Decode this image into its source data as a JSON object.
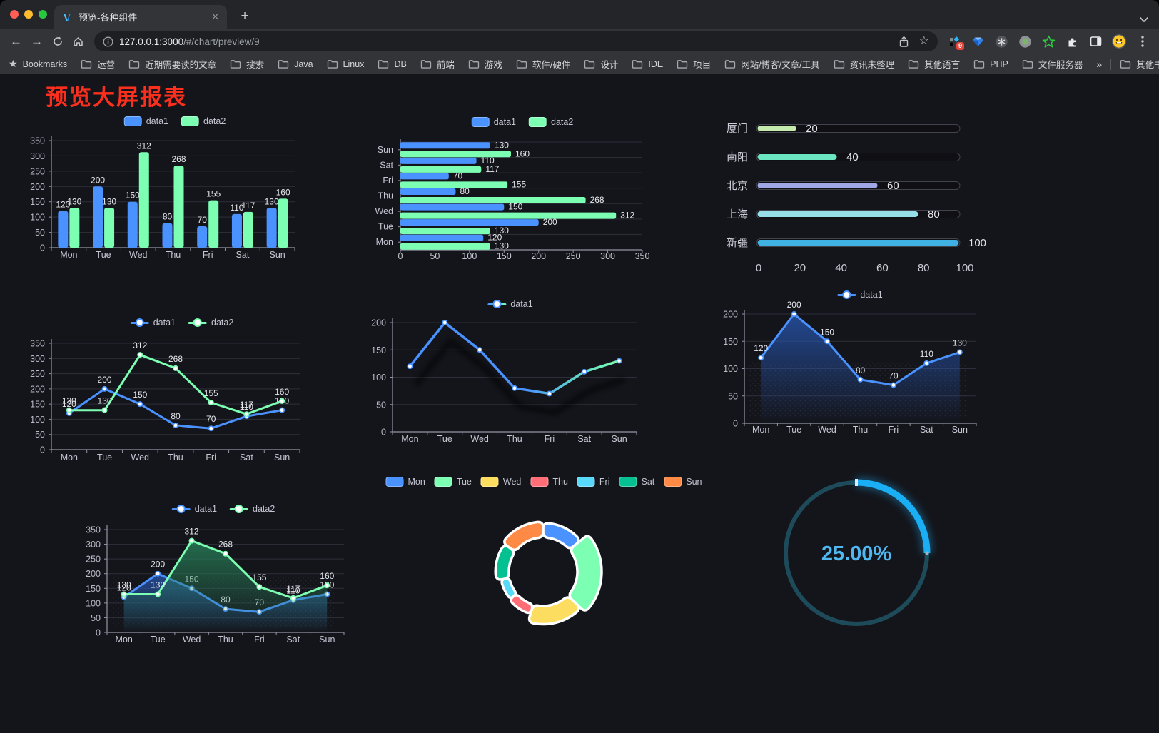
{
  "browser": {
    "traffic_lights": [
      "#ff5f57",
      "#febc2e",
      "#28c840"
    ],
    "tab": {
      "title": "预览-各种组件",
      "close": "×",
      "new_tab": "+"
    },
    "nav": {
      "url_host": "127.0.0.1:3000",
      "url_path": "/#/chart/preview/9"
    },
    "extensions_badge": "9",
    "bookmarks_bar": {
      "label": "Bookmarks",
      "folders": [
        "运营",
        "近期需要读的文章",
        "搜索",
        "Java",
        "Linux",
        "DB",
        "前端",
        "游戏",
        "软件/硬件",
        "设计",
        "IDE",
        "项目",
        "网站/博客/文章/工具",
        "资讯未整理",
        "其他语言",
        "PHP",
        "文件服务器"
      ],
      "overflow": "»",
      "other": "其他书签"
    }
  },
  "page": {
    "heading": "预览大屏报表",
    "heading_color": "#fb2f1d",
    "background": "#14151b"
  },
  "chart_data": [
    {
      "id": "bar-vertical",
      "type": "bar",
      "categories": [
        "Mon",
        "Tue",
        "Wed",
        "Thu",
        "Fri",
        "Sat",
        "Sun"
      ],
      "series": [
        {
          "name": "data1",
          "color": "#4992ff",
          "values": [
            120,
            200,
            150,
            80,
            70,
            110,
            130
          ]
        },
        {
          "name": "data2",
          "color": "#7cffb2",
          "values": [
            130,
            130,
            312,
            268,
            155,
            117,
            160
          ]
        }
      ],
      "y_max": 350,
      "y_step": 50
    },
    {
      "id": "bar-horizontal",
      "type": "hbar",
      "categories": [
        "Mon",
        "Tue",
        "Wed",
        "Thu",
        "Fri",
        "Sat",
        "Sun"
      ],
      "series": [
        {
          "name": "data1",
          "color": "#4992ff",
          "values": [
            120,
            200,
            150,
            80,
            70,
            110,
            130
          ]
        },
        {
          "name": "data2",
          "color": "#7cffb2",
          "values": [
            130,
            130,
            312,
            268,
            155,
            117,
            160
          ]
        }
      ],
      "x_max": 350,
      "x_step": 50
    },
    {
      "id": "progress-bars",
      "type": "progress",
      "max": 100,
      "ticks": [
        0,
        20,
        40,
        60,
        80,
        100
      ],
      "items": [
        {
          "label": "厦门",
          "value": 20,
          "color": "#c4ebad"
        },
        {
          "label": "南阳",
          "value": 40,
          "color": "#6be6c1"
        },
        {
          "label": "北京",
          "value": 60,
          "color": "#a0a7e6"
        },
        {
          "label": "上海",
          "value": 80,
          "color": "#96dee8"
        },
        {
          "label": "新疆",
          "value": 100,
          "color": "#3fb1e3"
        }
      ]
    },
    {
      "id": "line-basic",
      "type": "line",
      "categories": [
        "Mon",
        "Tue",
        "Wed",
        "Thu",
        "Fri",
        "Sat",
        "Sun"
      ],
      "series": [
        {
          "name": "data1",
          "color": "#4992ff",
          "values": [
            120,
            200,
            150,
            80,
            70,
            110,
            130
          ]
        },
        {
          "name": "data2",
          "color": "#7cffb2",
          "values": [
            130,
            130,
            312,
            268,
            155,
            117,
            160
          ]
        }
      ],
      "y_max": 350,
      "y_step": 50,
      "show_labels": true
    },
    {
      "id": "line-gradient",
      "type": "line",
      "categories": [
        "Mon",
        "Tue",
        "Wed",
        "Thu",
        "Fri",
        "Sat",
        "Sun"
      ],
      "series": [
        {
          "name": "data1",
          "color": "#4992ff",
          "gradient": [
            "#4992ff",
            "#7cffb2"
          ],
          "values": [
            120,
            200,
            150,
            80,
            70,
            110,
            130
          ]
        }
      ],
      "y_max": 200,
      "y_step": 50,
      "show_labels": false,
      "shadow": true
    },
    {
      "id": "area-single",
      "type": "area",
      "categories": [
        "Mon",
        "Tue",
        "Wed",
        "Thu",
        "Fri",
        "Sat",
        "Sun"
      ],
      "series": [
        {
          "name": "data1",
          "color": "#4992ff",
          "fill": "blue",
          "values": [
            120,
            200,
            150,
            80,
            70,
            110,
            130
          ]
        }
      ],
      "y_max": 200,
      "y_step": 50,
      "show_labels": true
    },
    {
      "id": "area-double",
      "type": "area",
      "categories": [
        "Mon",
        "Tue",
        "Wed",
        "Thu",
        "Fri",
        "Sat",
        "Sun"
      ],
      "series": [
        {
          "name": "data1",
          "color": "#4992ff",
          "fill": "blue",
          "values": [
            120,
            200,
            150,
            80,
            70,
            110,
            130
          ]
        },
        {
          "name": "data2",
          "color": "#7cffb2",
          "fill": "green",
          "values": [
            130,
            130,
            312,
            268,
            155,
            117,
            160
          ]
        }
      ],
      "y_max": 350,
      "y_step": 50,
      "show_labels": true
    },
    {
      "id": "rose-pie",
      "type": "rose",
      "items": [
        {
          "label": "Mon",
          "value": 120,
          "color": "#4992ff"
        },
        {
          "label": "Tue",
          "value": 200,
          "color": "#7cffb2"
        },
        {
          "label": "Wed",
          "value": 150,
          "color": "#fddd60"
        },
        {
          "label": "Thu",
          "value": 80,
          "color": "#ff6e76"
        },
        {
          "label": "Fri",
          "value": 70,
          "color": "#58d9f9"
        },
        {
          "label": "Sat",
          "value": 110,
          "color": "#05c091"
        },
        {
          "label": "Sun",
          "value": 130,
          "color": "#ff8a45"
        }
      ]
    },
    {
      "id": "gauge-ring",
      "type": "gauge",
      "value": 25,
      "label": "25.00%",
      "color": "#1aaef5",
      "track_color": "#1d4b59",
      "text_color": "#4fb8f0"
    }
  ]
}
